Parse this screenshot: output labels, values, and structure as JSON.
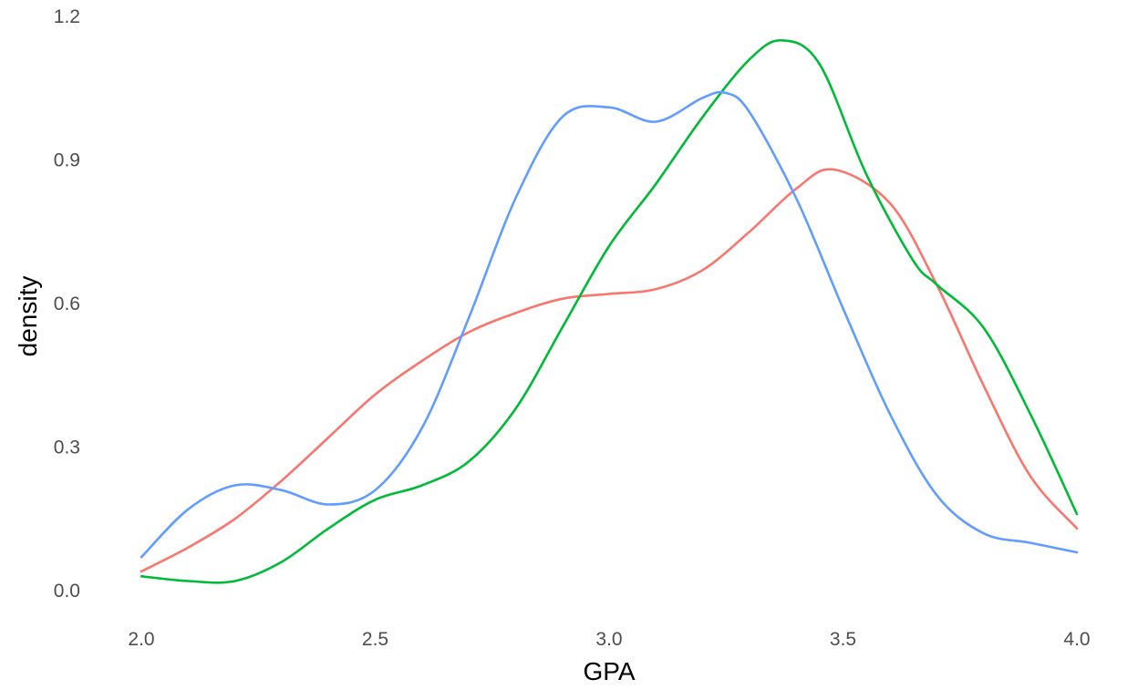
{
  "chart_data": {
    "type": "line",
    "title": "",
    "xlabel": "GPA",
    "ylabel": "density",
    "xlim": [
      2.0,
      4.0
    ],
    "ylim": [
      0.0,
      1.2
    ],
    "x_ticks": [
      "2.0",
      "2.5",
      "3.0",
      "3.5",
      "4.0"
    ],
    "y_ticks": [
      "0.0",
      "0.3",
      "0.6",
      "0.9",
      "1.2"
    ],
    "grid": false,
    "legend": "none",
    "series": [
      {
        "color": "#F8766D",
        "x": [
          2.0,
          2.1,
          2.2,
          2.3,
          2.4,
          2.5,
          2.6,
          2.7,
          2.8,
          2.9,
          3.0,
          3.1,
          3.2,
          3.3,
          3.4,
          3.48,
          3.6,
          3.7,
          3.8,
          3.9,
          4.0
        ],
        "y": [
          0.04,
          0.09,
          0.15,
          0.23,
          0.32,
          0.41,
          0.48,
          0.54,
          0.58,
          0.61,
          0.62,
          0.63,
          0.67,
          0.75,
          0.84,
          0.88,
          0.81,
          0.64,
          0.43,
          0.24,
          0.13
        ]
      },
      {
        "color": "#00BA38",
        "x": [
          2.0,
          2.1,
          2.2,
          2.3,
          2.4,
          2.5,
          2.6,
          2.7,
          2.8,
          2.9,
          3.0,
          3.1,
          3.2,
          3.3,
          3.37,
          3.45,
          3.55,
          3.65,
          3.7,
          3.8,
          3.9,
          4.0
        ],
        "y": [
          0.03,
          0.02,
          0.02,
          0.06,
          0.13,
          0.19,
          0.22,
          0.27,
          0.38,
          0.55,
          0.72,
          0.85,
          0.99,
          1.11,
          1.15,
          1.1,
          0.87,
          0.69,
          0.64,
          0.55,
          0.37,
          0.16
        ]
      },
      {
        "color": "#619CFF",
        "x": [
          2.0,
          2.1,
          2.2,
          2.3,
          2.4,
          2.5,
          2.6,
          2.7,
          2.8,
          2.9,
          3.0,
          3.1,
          3.2,
          3.25,
          3.3,
          3.4,
          3.5,
          3.6,
          3.7,
          3.8,
          3.9,
          4.0
        ],
        "y": [
          0.07,
          0.17,
          0.22,
          0.21,
          0.18,
          0.21,
          0.34,
          0.57,
          0.82,
          0.99,
          1.01,
          0.98,
          1.03,
          1.04,
          1.0,
          0.82,
          0.59,
          0.37,
          0.2,
          0.12,
          0.1,
          0.08
        ]
      }
    ]
  }
}
